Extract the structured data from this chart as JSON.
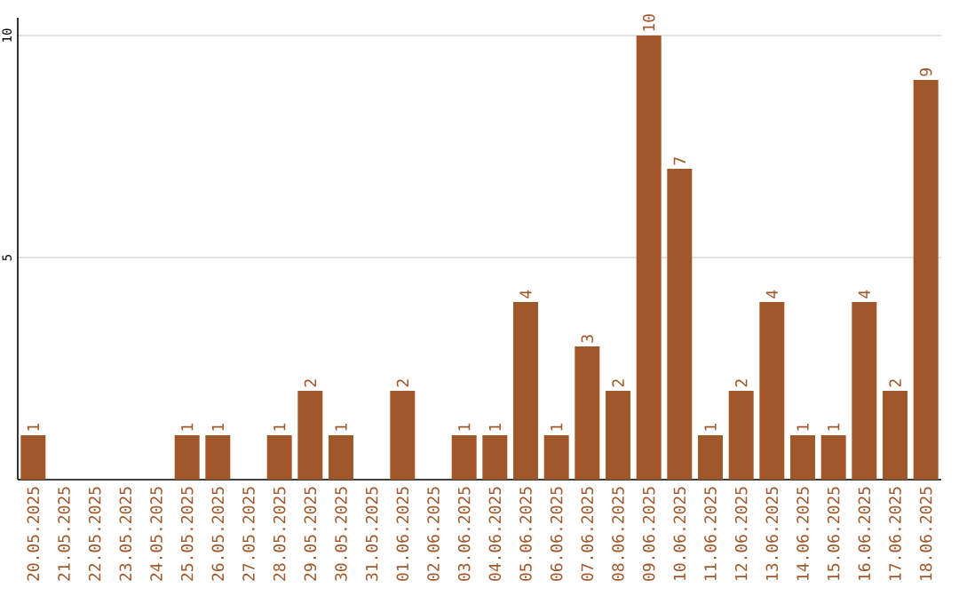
{
  "chart_data": {
    "type": "bar",
    "categories": [
      "20.05.2025",
      "21.05.2025",
      "22.05.2025",
      "23.05.2025",
      "24.05.2025",
      "25.05.2025",
      "26.05.2025",
      "27.05.2025",
      "28.05.2025",
      "29.05.2025",
      "30.05.2025",
      "31.05.2025",
      "01.06.2025",
      "02.06.2025",
      "03.06.2025",
      "04.06.2025",
      "05.06.2025",
      "06.06.2025",
      "07.06.2025",
      "08.06.2025",
      "09.06.2025",
      "10.06.2025",
      "11.06.2025",
      "12.06.2025",
      "13.06.2025",
      "14.06.2025",
      "15.06.2025",
      "16.06.2025",
      "17.06.2025",
      "18.06.2025"
    ],
    "values": [
      1,
      0,
      0,
      0,
      0,
      1,
      1,
      0,
      1,
      2,
      1,
      0,
      2,
      0,
      1,
      1,
      4,
      1,
      3,
      2,
      10,
      7,
      1,
      2,
      4,
      1,
      1,
      4,
      2,
      9
    ],
    "value_labels": [
      "1",
      null,
      null,
      null,
      null,
      "1",
      "1",
      null,
      "1",
      "2",
      "1",
      null,
      "2",
      null,
      "1",
      "1",
      "4",
      "1",
      "3",
      "2",
      "10",
      "7",
      "1",
      "2",
      "4",
      "1",
      "1",
      "4",
      "2",
      "9"
    ],
    "color": "#a0582a",
    "ylim": [
      0,
      10.4
    ],
    "yticks": [
      5,
      10
    ],
    "grid": "y"
  }
}
